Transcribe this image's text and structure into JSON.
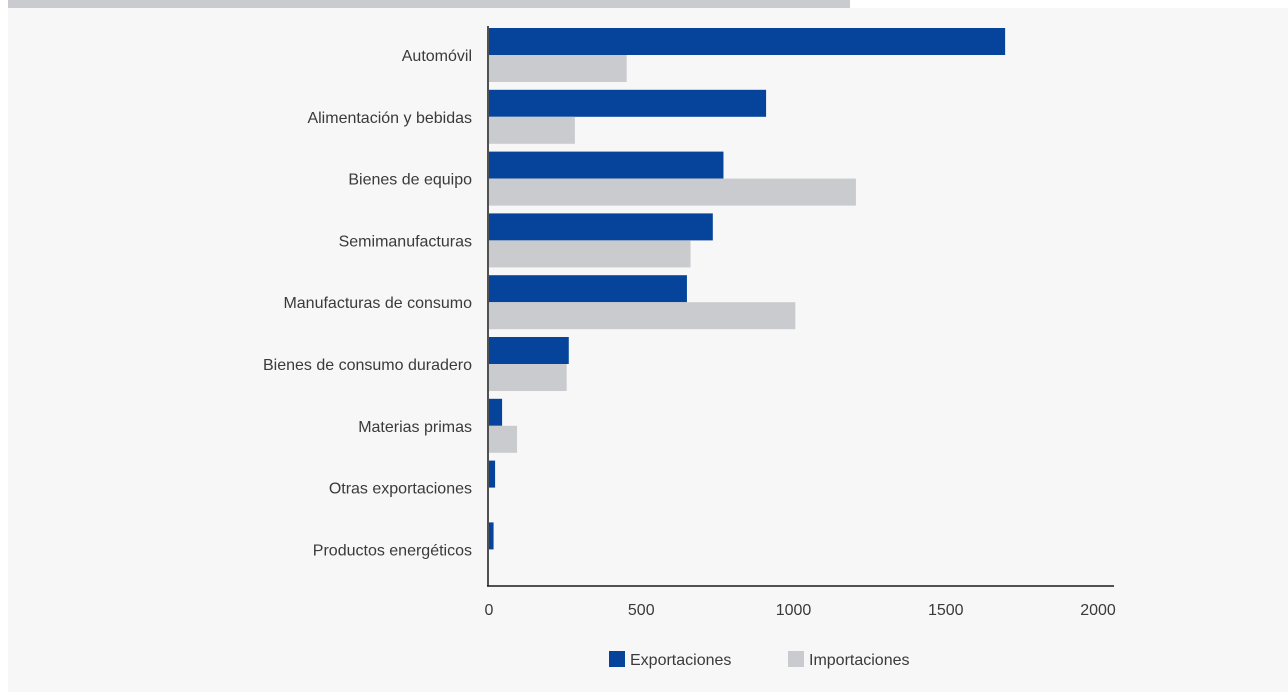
{
  "chart_data": {
    "type": "bar",
    "orientation": "horizontal",
    "categories": [
      "Automóvil",
      "Alimentación y bebidas",
      "Bienes de equipo",
      "Semimanufacturas",
      "Manufacturas de consumo",
      "Bienes de consumo duradero",
      "Materias primas",
      "Otras exportaciones",
      "Productos energéticos"
    ],
    "series": [
      {
        "name": "Exportaciones",
        "color": "#05449a",
        "values": [
          1695,
          910,
          770,
          735,
          650,
          262,
          43,
          20,
          15
        ]
      },
      {
        "name": "Importaciones",
        "color": "#c9cbce",
        "values": [
          452,
          282,
          1205,
          662,
          1006,
          255,
          92,
          0,
          0
        ]
      }
    ],
    "xlim": [
      0,
      2000
    ],
    "xticks": [
      0,
      500,
      1000,
      1500,
      2000
    ],
    "grid": false,
    "legend_position": "bottom-center"
  }
}
